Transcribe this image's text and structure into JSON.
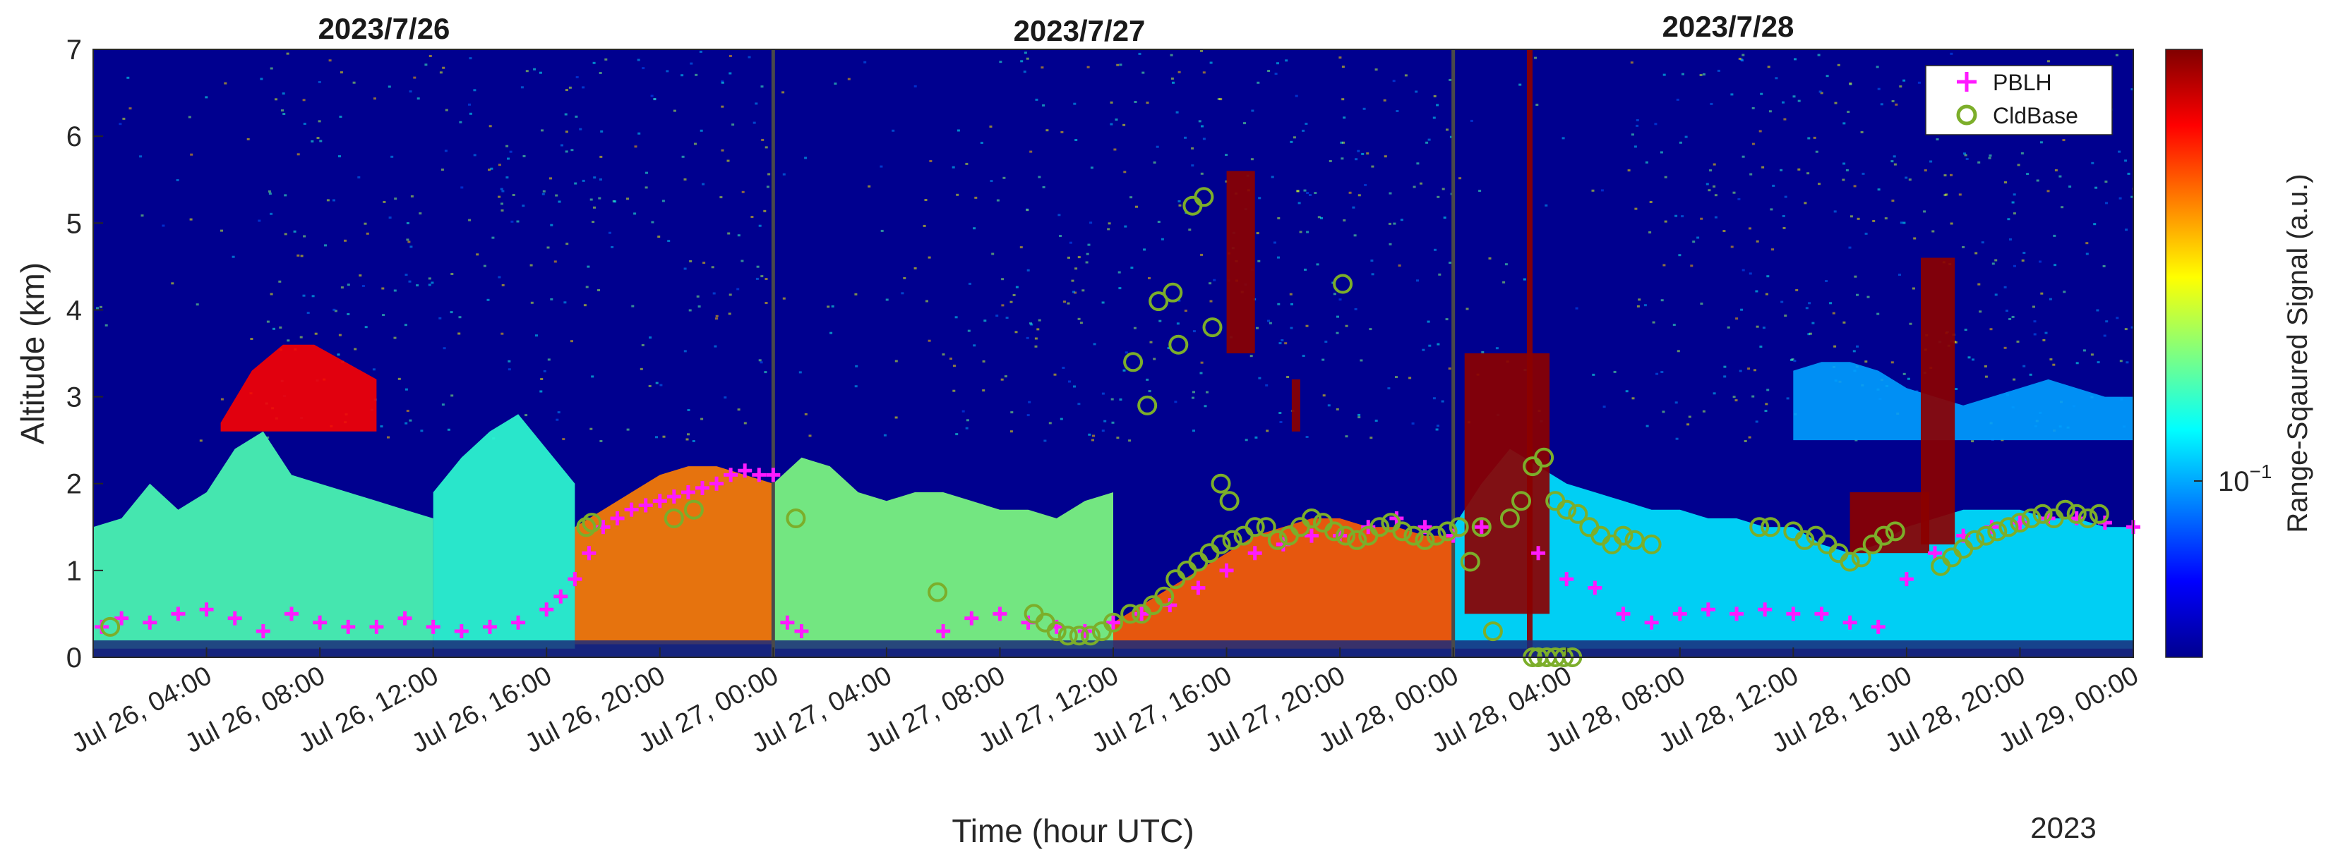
{
  "chart_data": {
    "type": "heatmap",
    "panel_titles": [
      "2023/7/26",
      "2023/7/27",
      "2023/7/28"
    ],
    "xlabel": "Time (hour UTC)",
    "ylabel": "Altitude (km)",
    "year_label": "2023",
    "xlim_hours": [
      0,
      72
    ],
    "ylim": [
      0,
      7
    ],
    "y_ticks": [
      "0",
      "1",
      "2",
      "3",
      "4",
      "5",
      "6",
      "7"
    ],
    "x_ticks": [
      {
        "hour": 4,
        "label": "Jul 26, 04:00"
      },
      {
        "hour": 8,
        "label": "Jul 26, 08:00"
      },
      {
        "hour": 12,
        "label": "Jul 26, 12:00"
      },
      {
        "hour": 16,
        "label": "Jul 26, 16:00"
      },
      {
        "hour": 20,
        "label": "Jul 26, 20:00"
      },
      {
        "hour": 24,
        "label": "Jul 27, 00:00"
      },
      {
        "hour": 28,
        "label": "Jul 27, 04:00"
      },
      {
        "hour": 32,
        "label": "Jul 27, 08:00"
      },
      {
        "hour": 36,
        "label": "Jul 27, 12:00"
      },
      {
        "hour": 40,
        "label": "Jul 27, 16:00"
      },
      {
        "hour": 44,
        "label": "Jul 27, 20:00"
      },
      {
        "hour": 48,
        "label": "Jul 28, 00:00"
      },
      {
        "hour": 52,
        "label": "Jul 28, 04:00"
      },
      {
        "hour": 56,
        "label": "Jul 28, 08:00"
      },
      {
        "hour": 60,
        "label": "Jul 28, 12:00"
      },
      {
        "hour": 64,
        "label": "Jul 28, 16:00"
      },
      {
        "hour": 68,
        "label": "Jul 28, 20:00"
      },
      {
        "hour": 72,
        "label": "Jul 29, 00:00"
      }
    ],
    "day_separators_hours": [
      24,
      48
    ],
    "colorbar": {
      "label": "Range-Sqaured Signal (a.u.)",
      "tick_label_base": "10",
      "tick_label_exp": "−1",
      "tick_fraction": 0.29,
      "colormap": "jet",
      "scale": "log"
    },
    "legend": {
      "placement": "top-right",
      "entries": [
        {
          "label": "PBLH",
          "marker": "+",
          "color": "#ff1aff"
        },
        {
          "label": "CldBase",
          "marker": "o",
          "color": "#7cae2a"
        }
      ]
    },
    "colors": {
      "background_signal": "#00008f",
      "pblh": "#ff1aff",
      "cldbase": "#7cae2a",
      "separator": "#4a4a4a"
    },
    "layers": [
      {
        "t": [
          0,
          12
        ],
        "base": 0.1,
        "top": [
          1.5,
          1.6,
          2.0,
          1.7,
          1.9,
          2.4,
          2.6,
          2.1,
          2.0,
          1.9,
          1.8,
          1.7,
          1.6
        ],
        "level": 0.45,
        "name": "day1 morning aerosol"
      },
      {
        "t": [
          4.5,
          10
        ],
        "base": 2.6,
        "top": [
          2.7,
          3.3,
          3.6,
          3.6,
          3.4,
          3.2
        ],
        "level": 0.88,
        "name": "elevated plume"
      },
      {
        "t": [
          12,
          17
        ],
        "base": 0.1,
        "top": [
          1.9,
          2.3,
          2.6,
          2.8,
          2.4,
          2.0
        ],
        "level": 0.42,
        "name": "day1 afternoon aerosol"
      },
      {
        "t": [
          17,
          24
        ],
        "base": 0.15,
        "top": [
          1.5,
          1.7,
          1.9,
          2.1,
          2.2,
          2.2,
          2.1,
          2.0
        ],
        "level": 0.75,
        "name": "day1 evening mixed layer"
      },
      {
        "t": [
          24,
          36
        ],
        "base": 0.1,
        "top": [
          2.0,
          2.3,
          2.2,
          1.9,
          1.8,
          1.9,
          1.9,
          1.8,
          1.7,
          1.7,
          1.6,
          1.8,
          1.9
        ],
        "level": 0.5,
        "name": "day2 residual layer"
      },
      {
        "t": [
          36,
          48
        ],
        "base": 0.1,
        "top": [
          0.4,
          0.6,
          0.8,
          1.0,
          1.2,
          1.4,
          1.5,
          1.6,
          1.6,
          1.5,
          1.5,
          1.4,
          1.4
        ],
        "level": 0.78,
        "name": "day2 mixed layer"
      },
      {
        "t": [
          48,
          72
        ],
        "base": 0.1,
        "top": [
          1.5,
          2.0,
          2.4,
          2.2,
          2.0,
          1.9,
          1.8,
          1.7,
          1.7,
          1.6,
          1.6,
          1.5,
          1.5,
          1.3,
          1.2,
          1.3,
          1.5,
          1.6,
          1.7,
          1.7,
          1.7,
          1.6,
          1.6,
          1.5,
          1.5
        ],
        "level": 0.35,
        "name": "day3 boundary layer"
      },
      {
        "t": [
          60,
          72
        ],
        "base": 2.5,
        "top": [
          3.3,
          3.4,
          3.4,
          3.3,
          3.1,
          3.0,
          2.9,
          3.0,
          3.1,
          3.2,
          3.1,
          3.0,
          3.0
        ],
        "level": 0.28,
        "name": "day3 elevated layer"
      }
    ],
    "clouds": [
      {
        "t": [
          40.0,
          41.0
        ],
        "bottom": 3.5,
        "top": 5.6
      },
      {
        "t": [
          42.3,
          42.6
        ],
        "bottom": 2.6,
        "top": 3.2
      },
      {
        "t": [
          48.4,
          51.4
        ],
        "bottom": 0.5,
        "top": 3.5
      },
      {
        "t": [
          50.6,
          50.8
        ],
        "bottom": 0.0,
        "top": 7.0
      },
      {
        "t": [
          62.0,
          64.8
        ],
        "bottom": 1.2,
        "top": 1.9
      },
      {
        "t": [
          64.5,
          65.7
        ],
        "bottom": 1.3,
        "top": 4.6
      }
    ],
    "pblh": {
      "x": [
        0.3,
        1.0,
        2.0,
        3.0,
        4.0,
        5.0,
        6.0,
        7.0,
        8.0,
        9.0,
        10.0,
        11.0,
        12.0,
        13.0,
        14.0,
        15.0,
        16.0,
        16.5,
        17.0,
        17.5,
        18.0,
        18.5,
        19.0,
        19.5,
        20.0,
        20.5,
        21.0,
        21.5,
        22.0,
        22.5,
        23.0,
        23.5,
        24.0,
        24.5,
        25.0,
        30.0,
        31.0,
        32.0,
        33.0,
        34.0,
        35.0,
        36.0,
        37.0,
        38.0,
        39.0,
        40.0,
        41.0,
        42.0,
        43.0,
        44.0,
        45.0,
        46.0,
        47.0,
        48.0,
        49.0,
        51.0,
        52.0,
        53.0,
        54.0,
        55.0,
        56.0,
        57.0,
        58.0,
        59.0,
        60.0,
        61.0,
        62.0,
        63.0,
        64.0,
        65.0,
        66.0,
        67.0,
        68.0,
        69.0,
        70.0,
        71.0,
        72.0
      ],
      "y": [
        0.35,
        0.45,
        0.4,
        0.5,
        0.55,
        0.45,
        0.3,
        0.5,
        0.4,
        0.35,
        0.35,
        0.45,
        0.35,
        0.3,
        0.35,
        0.4,
        0.55,
        0.7,
        0.9,
        1.2,
        1.5,
        1.6,
        1.7,
        1.75,
        1.8,
        1.85,
        1.9,
        1.95,
        2.0,
        2.1,
        2.15,
        2.1,
        2.1,
        0.4,
        0.3,
        0.3,
        0.45,
        0.5,
        0.4,
        0.35,
        0.3,
        0.4,
        0.5,
        0.6,
        0.8,
        1.0,
        1.2,
        1.3,
        1.4,
        1.4,
        1.5,
        1.6,
        1.5,
        1.4,
        1.5,
        1.2,
        0.9,
        0.8,
        0.5,
        0.4,
        0.5,
        0.55,
        0.5,
        0.55,
        0.5,
        0.5,
        0.4,
        0.35,
        0.9,
        1.2,
        1.4,
        1.5,
        1.55,
        1.6,
        1.6,
        1.55,
        1.5
      ]
    },
    "cldbase": {
      "x": [
        0.6,
        17.4,
        17.6,
        20.5,
        21.2,
        24.8,
        29.8,
        33.2,
        33.6,
        34.0,
        34.4,
        34.8,
        35.2,
        35.6,
        36.0,
        36.6,
        37.0,
        37.4,
        37.8,
        38.2,
        38.6,
        39.0,
        39.4,
        39.8,
        40.2,
        40.6,
        41.0,
        41.4,
        41.8,
        42.2,
        42.6,
        43.0,
        43.4,
        43.8,
        44.2,
        44.6,
        45.0,
        45.4,
        45.8,
        46.2,
        46.6,
        47.0,
        47.4,
        47.8,
        36.7,
        37.2,
        37.6,
        38.1,
        38.3,
        38.8,
        39.2,
        39.5,
        39.8,
        40.1,
        44.1,
        48.2,
        48.6,
        49.0,
        49.4,
        50.0,
        50.4,
        50.8,
        51.2,
        51.6,
        52.0,
        52.4,
        52.8,
        53.2,
        53.6,
        54.0,
        54.4,
        55.0,
        58.8,
        59.2,
        60.0,
        60.4,
        60.8,
        61.2,
        61.6,
        62.0,
        62.4,
        62.8,
        63.2,
        63.6,
        65.2,
        65.6,
        66.0,
        66.4,
        66.8,
        67.2,
        67.6,
        68.0,
        68.4,
        68.8,
        69.2,
        69.6,
        70.0,
        70.4,
        70.8
      ],
      "y": [
        0.35,
        1.5,
        1.55,
        1.6,
        1.7,
        1.6,
        0.75,
        0.5,
        0.4,
        0.3,
        0.25,
        0.25,
        0.25,
        0.3,
        0.4,
        0.5,
        0.5,
        0.6,
        0.7,
        0.9,
        1.0,
        1.1,
        1.2,
        1.3,
        1.35,
        1.4,
        1.5,
        1.5,
        1.35,
        1.4,
        1.5,
        1.6,
        1.55,
        1.45,
        1.4,
        1.35,
        1.4,
        1.5,
        1.55,
        1.45,
        1.4,
        1.35,
        1.4,
        1.45,
        3.4,
        2.9,
        4.1,
        4.2,
        3.6,
        5.2,
        5.3,
        3.8,
        2.0,
        1.8,
        4.3,
        1.5,
        1.1,
        1.5,
        0.3,
        1.6,
        1.8,
        2.2,
        2.3,
        1.8,
        1.7,
        1.65,
        1.5,
        1.4,
        1.3,
        1.4,
        1.35,
        1.3,
        1.5,
        1.5,
        1.45,
        1.35,
        1.4,
        1.3,
        1.2,
        1.1,
        1.15,
        1.3,
        1.4,
        1.45,
        1.05,
        1.15,
        1.25,
        1.35,
        1.4,
        1.45,
        1.5,
        1.55,
        1.6,
        1.65,
        1.6,
        1.7,
        1.65,
        1.6,
        1.65
      ],
      "ground_hits_x": [
        50.8,
        51.0,
        51.3,
        51.6,
        51.9,
        52.2
      ],
      "ground_hits_y": [
        0.0,
        0.0,
        0.0,
        0.0,
        0.0,
        0.0
      ]
    }
  }
}
